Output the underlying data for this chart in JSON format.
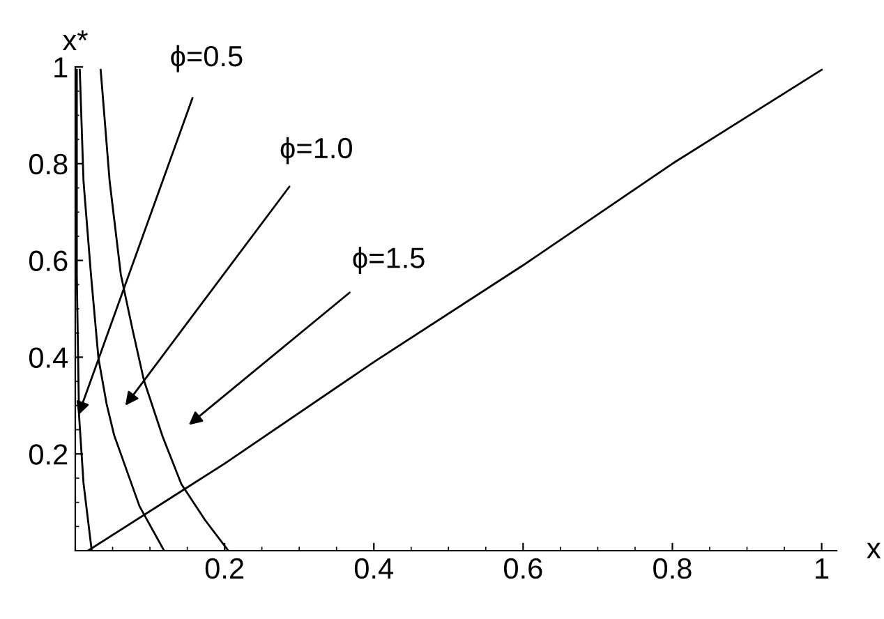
{
  "chart_data": {
    "type": "line",
    "xlabel": "x",
    "ylabel": "x*",
    "xlim": [
      0,
      1.02
    ],
    "ylim": [
      0,
      1.0
    ],
    "xticks": [
      0.2,
      0.4,
      0.6,
      0.8,
      1
    ],
    "yticks": [
      0.2,
      0.4,
      0.6,
      0.8,
      1
    ],
    "grid": false,
    "legend": false,
    "marker": "none",
    "line_style": "solid",
    "series": [
      {
        "name": "ϕ=0.5",
        "color": "#000000",
        "x": [
          0.002,
          0.002,
          0.005,
          0.011,
          0.022
        ],
        "values": [
          0.994,
          0.57,
          0.28,
          0.14,
          0
        ]
      },
      {
        "name": "ϕ=1.0",
        "color": "#000000",
        "x": [
          0.006,
          0.011,
          0.021,
          0.031,
          0.042,
          0.052,
          0.086,
          0.119
        ],
        "values": [
          0.994,
          0.764,
          0.571,
          0.398,
          0.303,
          0.239,
          0.092,
          0
        ]
      },
      {
        "name": "ϕ=1.5",
        "color": "#000000",
        "x": [
          0.034,
          0.046,
          0.061,
          0.077,
          0.092,
          0.117,
          0.142,
          0.174,
          0.205
        ],
        "values": [
          0.994,
          0.764,
          0.571,
          0.455,
          0.352,
          0.236,
          0.138,
          0.063,
          0
        ]
      },
      {
        "color": "#000000",
        "x": [
          0.017,
          0.2,
          0.4,
          0.6,
          0.8,
          1.0
        ],
        "values": [
          0,
          0.18,
          0.39,
          0.59,
          0.8,
          0.994
        ]
      }
    ]
  }
}
